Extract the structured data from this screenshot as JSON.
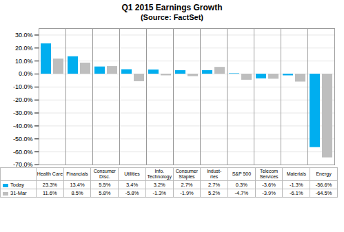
{
  "chart_data": {
    "type": "bar",
    "title": "Q1 2015 Earnings Growth",
    "subtitle": "(Source: FactSet)",
    "categories": [
      "Health Care",
      "Financials",
      "Consumer\nDisc.",
      "Utilities",
      "Info.\nTechnology",
      "Consumer\nStaples",
      "Indust-\nries",
      "S&P 500",
      "Telecom\nServices",
      "Materials",
      "Energy"
    ],
    "series": [
      {
        "name": "Today",
        "color": "#00AEEF",
        "values": [
          23.3,
          13.4,
          5.5,
          3.4,
          3.2,
          2.7,
          2.7,
          0.3,
          -3.6,
          -1.3,
          -56.6
        ],
        "value_labels": [
          "23.3%",
          "13.4%",
          "5.5%",
          "3.4%",
          "3.2%",
          "2.7%",
          "2.7%",
          "0.3%",
          "-3.6%",
          "-1.3%",
          "-56.6%"
        ]
      },
      {
        "name": "31-Mar",
        "color": "#BEBEBE",
        "values": [
          11.6,
          8.5,
          5.8,
          -5.8,
          -1.3,
          -1.9,
          5.2,
          -4.7,
          -3.9,
          -6.1,
          -64.5
        ],
        "value_labels": [
          "11.6%",
          "8.5%",
          "5.8%",
          "-5.8%",
          "-1.3%",
          "-1.9%",
          "5.2%",
          "-4.7%",
          "-3.9%",
          "-6.1%",
          "-64.5%"
        ]
      }
    ],
    "ylim": [
      -70,
      35
    ],
    "yticks": [
      {
        "value": 30,
        "label": "30.0%"
      },
      {
        "value": 20,
        "label": "20.0%"
      },
      {
        "value": 10,
        "label": "10.0%"
      },
      {
        "value": 0,
        "label": "0.0%"
      },
      {
        "value": -10,
        "label": "-10.0%"
      },
      {
        "value": -20,
        "label": "-20.0%"
      },
      {
        "value": -30,
        "label": "-30.0%"
      },
      {
        "value": -40,
        "label": "-40.0%"
      },
      {
        "value": -50,
        "label": "-50.0%"
      },
      {
        "value": -60,
        "label": "-60.0%"
      },
      {
        "value": -70,
        "label": "-70.0%"
      }
    ],
    "grid": true,
    "tick_labels": "y"
  }
}
